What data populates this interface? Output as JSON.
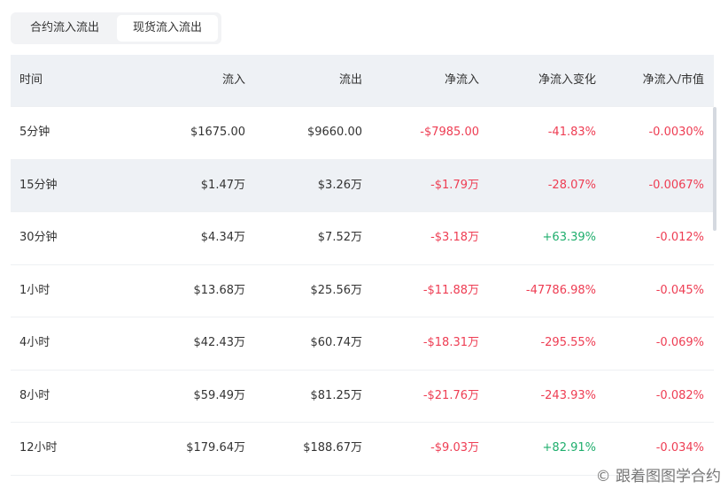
{
  "tabs": [
    "合约流入流出",
    "现货流入流出"
  ],
  "active_tab": 1,
  "table": {
    "headers": [
      "时间",
      "流入",
      "流出",
      "净流入",
      "净流入变化",
      "净流入/市值"
    ],
    "rows": [
      [
        "5分钟",
        "$1675.00",
        "$9660.00",
        "-$7985.00",
        "-41.83%",
        "-0.0030%"
      ],
      [
        "15分钟",
        "$1.47万",
        "$3.26万",
        "-$1.79万",
        "-28.07%",
        "-0.0067%"
      ],
      [
        "30分钟",
        "$4.34万",
        "$7.52万",
        "-$3.18万",
        "+63.39%",
        "-0.012%"
      ],
      [
        "1小时",
        "$13.68万",
        "$25.56万",
        "-$11.88万",
        "-47786.98%",
        "-0.045%"
      ],
      [
        "4小时",
        "$42.43万",
        "$60.74万",
        "-$18.31万",
        "-295.55%",
        "-0.069%"
      ],
      [
        "8小时",
        "$59.49万",
        "$81.25万",
        "-$21.76万",
        "-243.93%",
        "-0.082%"
      ],
      [
        "12小时",
        "$179.64万",
        "$188.67万",
        "-$9.03万",
        "+82.91%",
        "-0.034%"
      ]
    ]
  },
  "watermark": "© 跟着图图学合约"
}
